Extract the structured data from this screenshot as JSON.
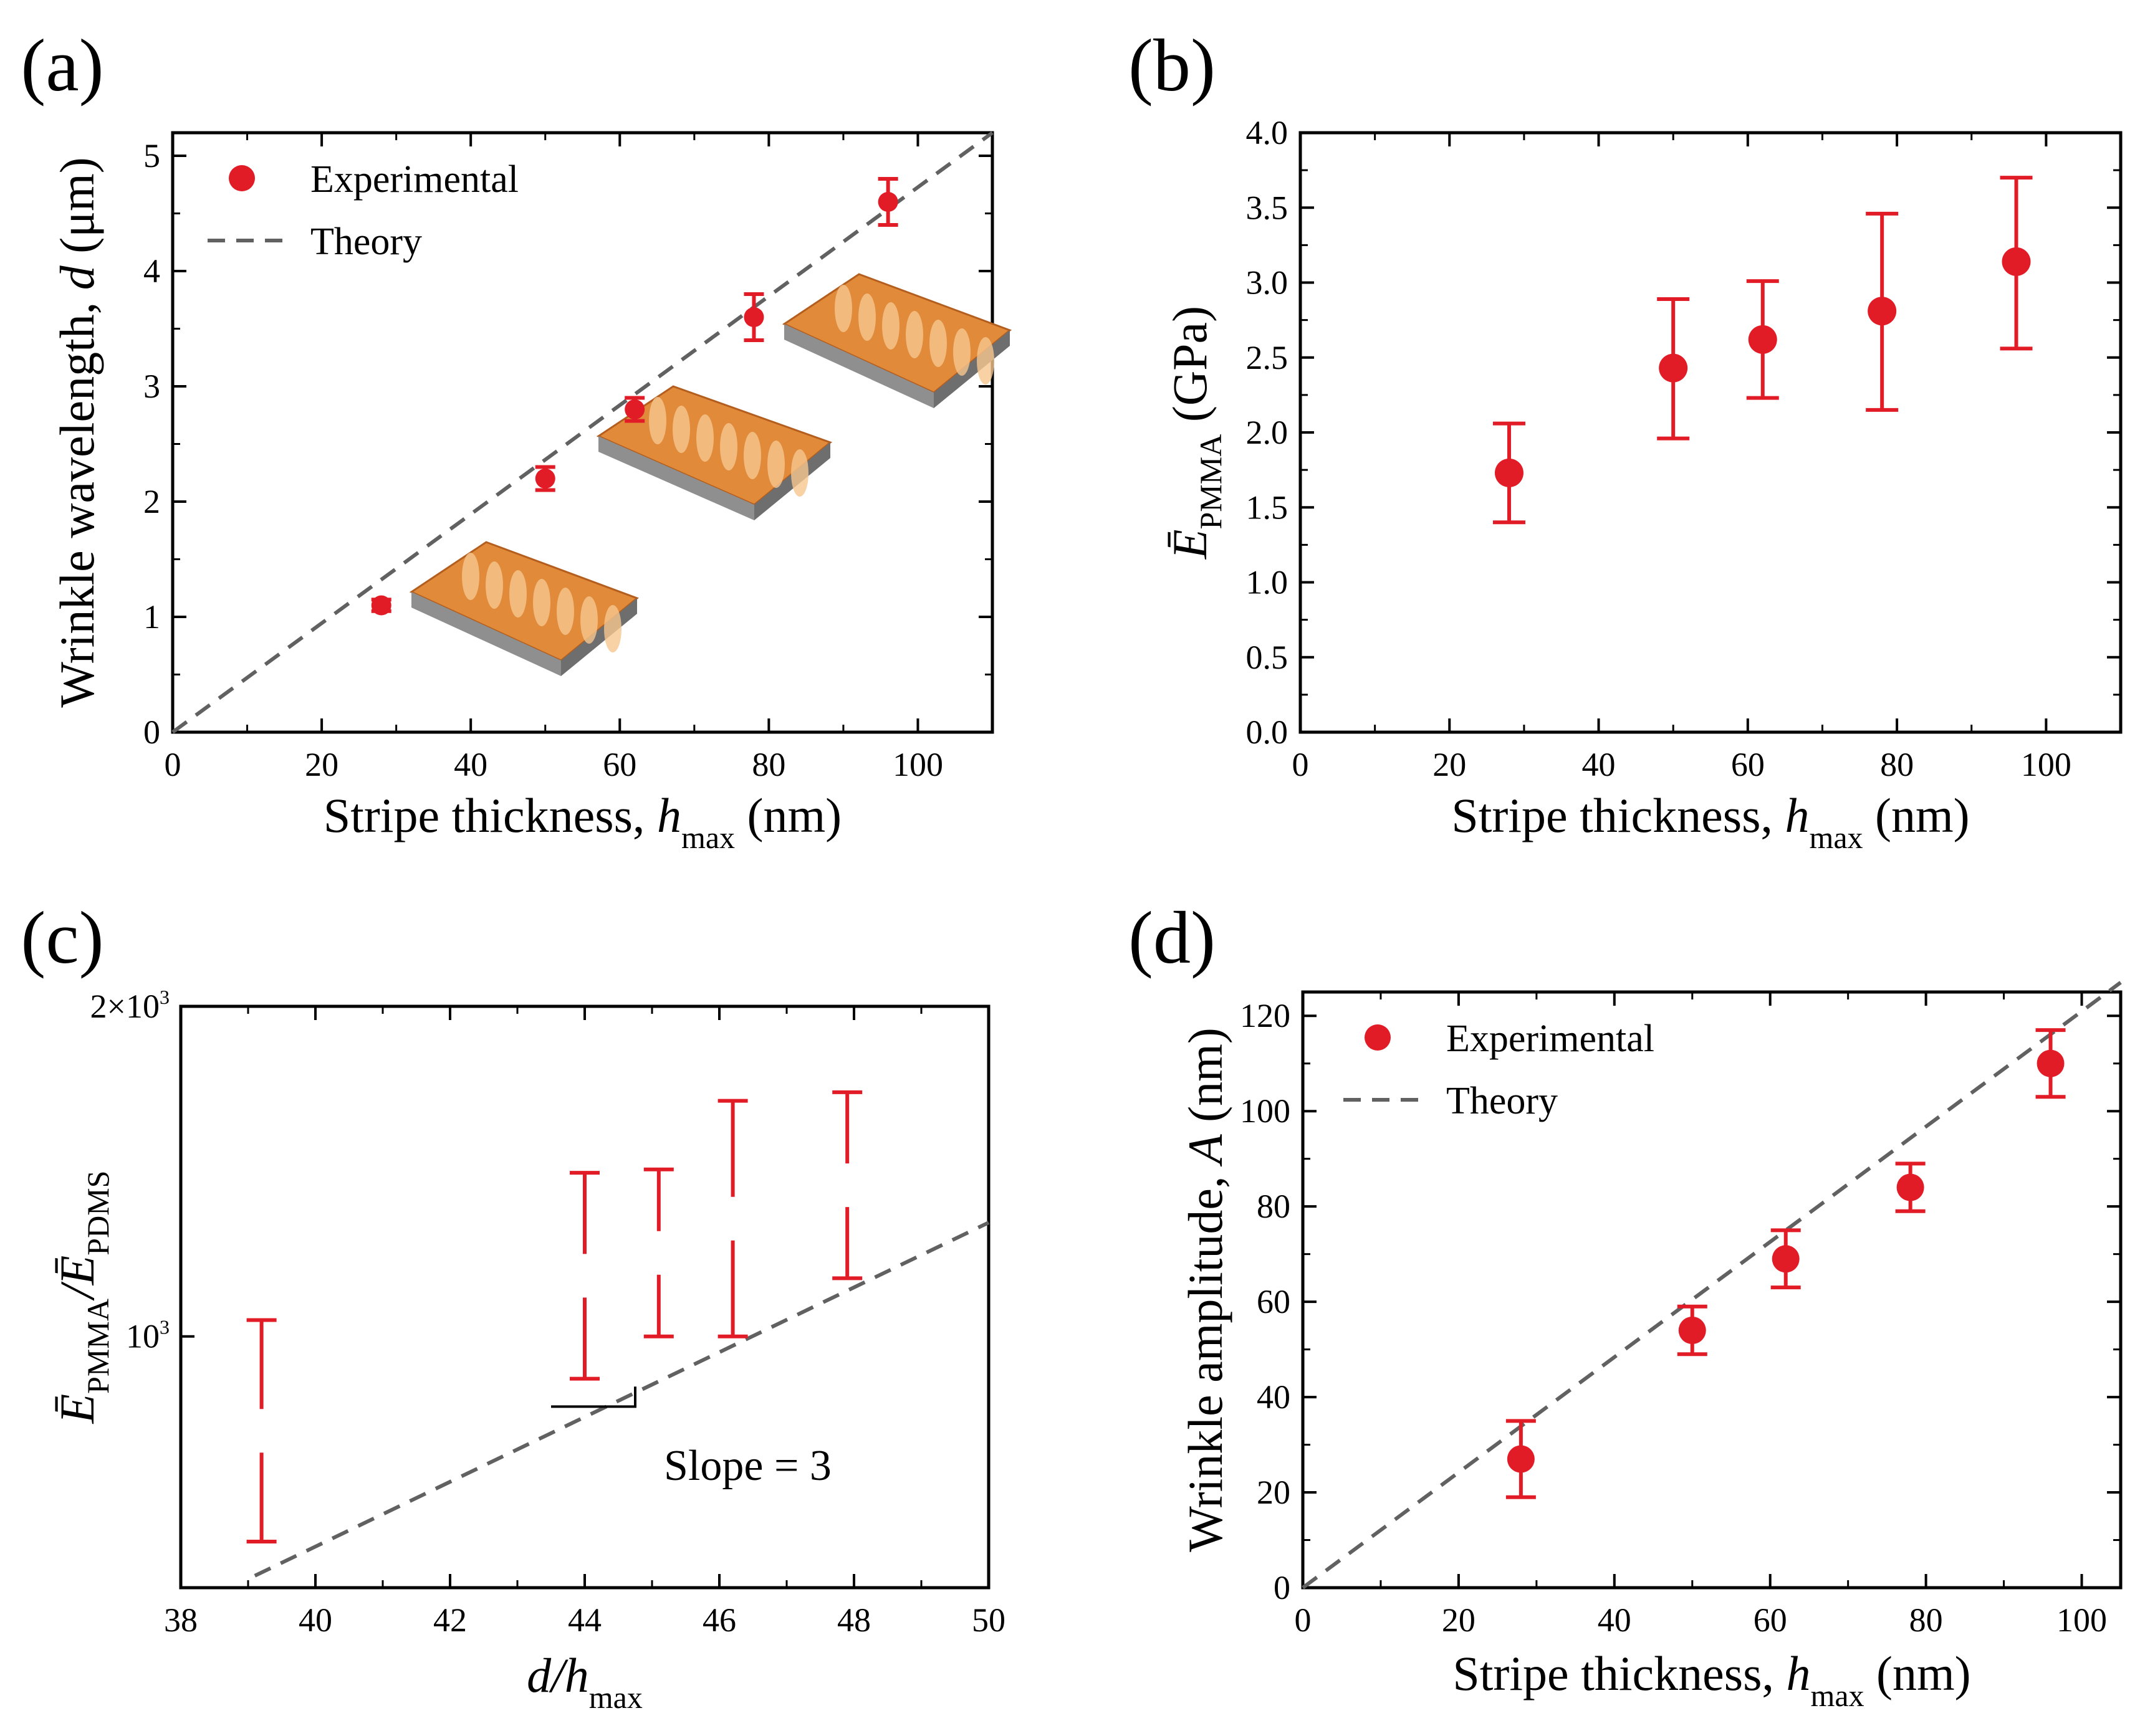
{
  "colors": {
    "marker": "#e21c26",
    "theory": "#616161",
    "axis": "#000000",
    "inset_top": "#e08a3a",
    "inset_side": "#8f8f8f"
  },
  "chart_data": [
    {
      "panel": "(a)",
      "type": "scatter",
      "xlabel": "Stripe thickness, h",
      "xlabel_sub": "max",
      "xlabel_unit": " (nm)",
      "ylabel": "Wrinkle wavelength, d (μm)",
      "xlim": [
        0,
        110
      ],
      "ylim": [
        0,
        5.2
      ],
      "xticks": [
        0,
        20,
        40,
        60,
        80,
        100
      ],
      "yticks": [
        0,
        1,
        2,
        3,
        4,
        5
      ],
      "legend": {
        "experimental": "Experimental",
        "theory": "Theory",
        "position": "top-left"
      },
      "series": [
        {
          "name": "Experimental",
          "x": [
            28,
            50,
            62,
            78,
            96
          ],
          "y": [
            1.1,
            2.2,
            2.8,
            3.6,
            4.6
          ],
          "err": [
            0.05,
            0.1,
            0.1,
            0.2,
            0.2
          ]
        },
        {
          "name": "Theory",
          "x": [
            0,
            110
          ],
          "y": [
            0,
            5.2
          ]
        }
      ],
      "insets": [
        "AFM 3D topography (h = 28 nm)",
        "AFM 3D topography (h = 62 nm)",
        "AFM 3D topography (h = 96 nm)"
      ]
    },
    {
      "panel": "(b)",
      "type": "scatter",
      "xlabel": "Stripe thickness, h",
      "xlabel_sub": "max",
      "xlabel_unit": " (nm)",
      "ylabel": "Ē",
      "ylabel_sub": "PMMA",
      "ylabel_unit": " (GPa)",
      "xlim": [
        0,
        110
      ],
      "ylim": [
        0,
        4.0
      ],
      "xticks": [
        0,
        20,
        40,
        60,
        80,
        100
      ],
      "yticks": [
        "0.0",
        "0.5",
        "1.0",
        "1.5",
        "2.0",
        "2.5",
        "3.0",
        "3.5",
        "4.0"
      ],
      "series": [
        {
          "name": "Experimental",
          "x": [
            28,
            50,
            62,
            78,
            96
          ],
          "y": [
            1.73,
            2.43,
            2.62,
            2.81,
            3.14
          ],
          "err_low": [
            1.4,
            1.96,
            2.23,
            2.15,
            2.56
          ],
          "err_high": [
            2.06,
            2.89,
            3.01,
            3.46,
            3.7
          ]
        }
      ]
    },
    {
      "panel": "(c)",
      "type": "errorbar",
      "xlabel": "d/h",
      "xlabel_sub": "max",
      "ylabel": "Ē",
      "ylabel_sub1": "PMMA",
      "ylabel_mid": "/Ē",
      "ylabel_sub2": "PDMS",
      "xlim": [
        38,
        50
      ],
      "ylim": [
        590,
        2000
      ],
      "yscale": "log",
      "xticks": [
        38,
        40,
        42,
        44,
        46,
        48,
        50
      ],
      "ytick_labels": {
        "1000": "10",
        "1000_exp": "3",
        "2000": "2×10",
        "2000_exp": "3"
      },
      "annotation": "Slope = 3",
      "series": [
        {
          "name": "Experimental",
          "x": [
            39.2,
            44.0,
            45.1,
            46.2,
            47.9
          ],
          "low": [
            650,
            915,
            1000,
            1000,
            1130
          ],
          "high": [
            1035,
            1410,
            1420,
            1640,
            1670
          ]
        },
        {
          "name": "Theory (slope 3)",
          "x": [
            39.1,
            50
          ],
          "y": [
            605,
            1270
          ]
        }
      ]
    },
    {
      "panel": "(d)",
      "type": "scatter",
      "xlabel": "Stripe thickness, h",
      "xlabel_sub": "max",
      "xlabel_unit": " (nm)",
      "ylabel": "Wrinkle amplitude, A (nm)",
      "xlim": [
        0,
        105
      ],
      "ylim": [
        0,
        125
      ],
      "xticks": [
        0,
        20,
        40,
        60,
        80,
        100
      ],
      "yticks": [
        0,
        20,
        40,
        60,
        80,
        100,
        120
      ],
      "legend": {
        "experimental": "Experimental",
        "theory": "Theory",
        "position": "top-left"
      },
      "series": [
        {
          "name": "Experimental",
          "x": [
            28,
            50,
            62,
            78,
            96
          ],
          "y": [
            27,
            54,
            69,
            84,
            110
          ],
          "err": [
            8,
            5,
            6,
            5,
            7
          ]
        },
        {
          "name": "Theory",
          "x": [
            0,
            105
          ],
          "y": [
            0,
            127
          ]
        }
      ]
    }
  ]
}
